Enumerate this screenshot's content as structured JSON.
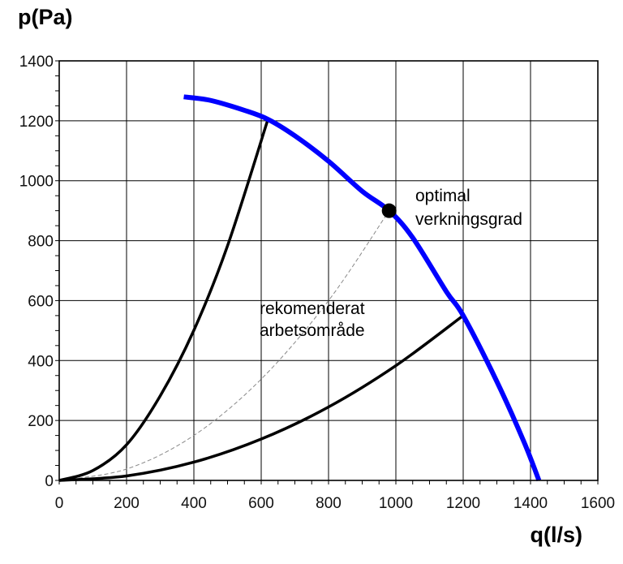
{
  "chart_data": {
    "type": "line",
    "ylabel": "p(Pa)",
    "xlabel": "q(l/s)",
    "xlim": [
      0,
      1600
    ],
    "ylim": [
      0,
      1400
    ],
    "x_ticks": [
      0,
      200,
      400,
      600,
      800,
      1000,
      1200,
      1400,
      1600
    ],
    "y_ticks": [
      0,
      200,
      400,
      600,
      800,
      1000,
      1200,
      1400
    ],
    "grid": true,
    "series": [
      {
        "id": "fan-curve",
        "color": "#0000ff",
        "style": "solid",
        "points": [
          [
            370,
            1280
          ],
          [
            450,
            1268
          ],
          [
            550,
            1235
          ],
          [
            620,
            1205
          ],
          [
            700,
            1150
          ],
          [
            800,
            1065
          ],
          [
            900,
            965
          ],
          [
            980,
            900
          ],
          [
            1050,
            810
          ],
          [
            1150,
            630
          ],
          [
            1200,
            550
          ],
          [
            1300,
            330
          ],
          [
            1380,
            130
          ],
          [
            1425,
            0
          ]
        ]
      },
      {
        "id": "system-curve-upper",
        "color": "#000000",
        "style": "solid",
        "points": [
          [
            0,
            0
          ],
          [
            100,
            33
          ],
          [
            200,
            119
          ],
          [
            300,
            282
          ],
          [
            400,
            501
          ],
          [
            500,
            783
          ],
          [
            620,
            1205
          ]
        ]
      },
      {
        "id": "system-curve-optimal",
        "color": "#888888",
        "style": "dashed",
        "points": [
          [
            0,
            0
          ],
          [
            200,
            38
          ],
          [
            400,
            150
          ],
          [
            600,
            338
          ],
          [
            800,
            600
          ],
          [
            980,
            900
          ]
        ]
      },
      {
        "id": "system-curve-lower",
        "color": "#000000",
        "style": "solid",
        "points": [
          [
            0,
            0
          ],
          [
            200,
            15
          ],
          [
            400,
            61
          ],
          [
            600,
            138
          ],
          [
            800,
            245
          ],
          [
            1000,
            383
          ],
          [
            1200,
            550
          ]
        ]
      }
    ],
    "optimal_point": {
      "x": 980,
      "y": 900,
      "color": "#000000"
    },
    "annotations": [
      {
        "lines": [
          "optimal",
          "verkningsgrad"
        ]
      },
      {
        "lines": [
          "rekomenderat",
          "arbetsområde"
        ]
      }
    ]
  }
}
